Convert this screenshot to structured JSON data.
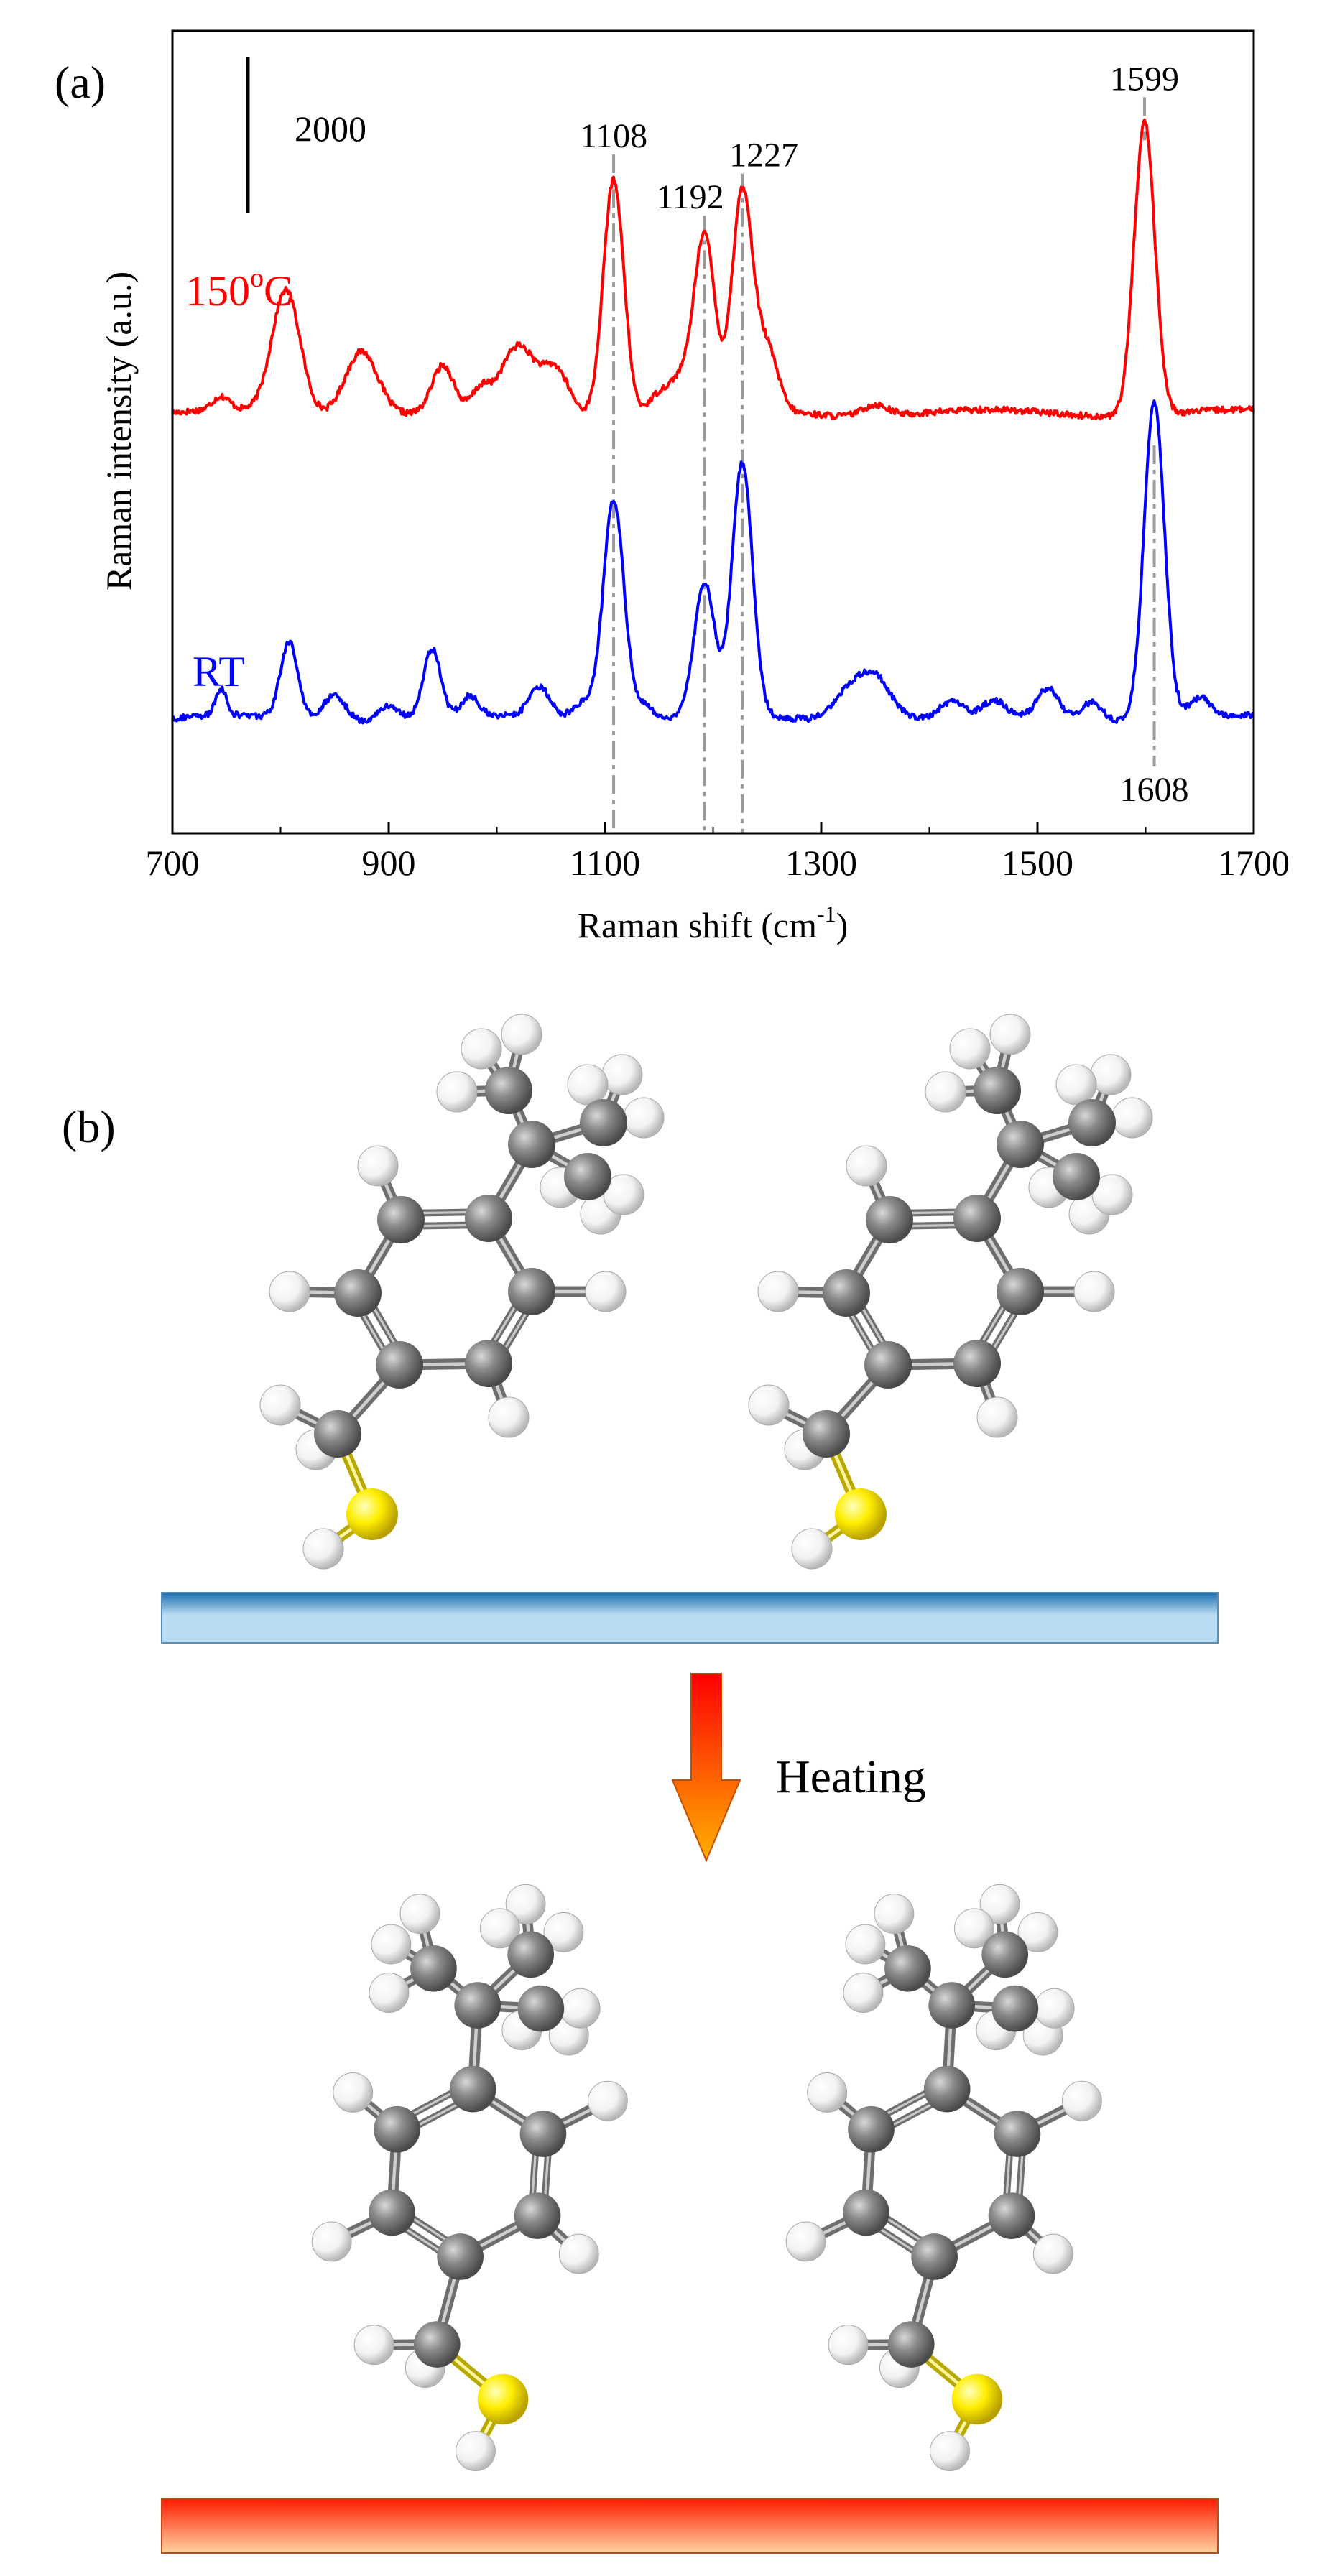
{
  "figure": {
    "panel_a_label": "(a)",
    "panel_b_label": "(b)"
  },
  "chart_data": {
    "type": "line",
    "xlabel": "Raman shift (cm-1)",
    "xlabel_parts": {
      "main": "Raman shift (cm",
      "sup": "-1",
      "tail": ")"
    },
    "ylabel": "Raman intensity (a.u.)",
    "xlim": [
      700,
      1700
    ],
    "x_ticks": [
      700,
      900,
      1100,
      1300,
      1500,
      1700
    ],
    "scale_bar": {
      "label": "2000",
      "value": 2000
    },
    "grid": false,
    "legend": "none",
    "series": [
      {
        "name": "150oC",
        "label_parts": {
          "main": "150",
          "sup": "o",
          "tail": "C"
        },
        "color": "#ff0000",
        "offset": 11000,
        "peaks": [
          [
            1108,
            6200
          ],
          [
            1192,
            4600
          ],
          [
            1227,
            5700
          ],
          [
            1599,
            7700
          ]
        ],
        "features": [
          [
            745,
            350,
            8
          ],
          [
            805,
            3200,
            13
          ],
          [
            875,
            1700,
            15
          ],
          [
            950,
            1200,
            10
          ],
          [
            985,
            500,
            8
          ],
          [
            1020,
            1700,
            16
          ],
          [
            1055,
            1100,
            12
          ],
          [
            1150,
            500,
            10
          ],
          [
            1170,
            800,
            10
          ],
          [
            1250,
            1600,
            10
          ],
          [
            1350,
            300,
            12
          ]
        ],
        "x": [
          700,
          750,
          800,
          850,
          900,
          950,
          1000,
          1050,
          1100,
          1108,
          1150,
          1192,
          1227,
          1250,
          1300,
          1350,
          1400,
          1450,
          1500,
          1550,
          1599,
          1650,
          1700
        ],
        "y": [
          11300,
          11400,
          13800,
          12200,
          11500,
          12100,
          12000,
          12300,
          14500,
          17200,
          11800,
          15600,
          16700,
          12500,
          11200,
          11400,
          11150,
          11100,
          10900,
          11100,
          18700,
          11100,
          11000
        ]
      },
      {
        "name": "RT",
        "label_parts": {
          "main": "RT",
          "sup": "",
          "tail": ""
        },
        "color": "#0000ff",
        "offset": 3000,
        "peaks": [
          [
            1108,
            5800
          ],
          [
            1192,
            3500
          ],
          [
            1227,
            6600
          ],
          [
            1608,
            8300
          ]
        ],
        "features": [
          [
            745,
            700,
            5
          ],
          [
            808,
            2000,
            8
          ],
          [
            850,
            700,
            10
          ],
          [
            900,
            400,
            10
          ],
          [
            940,
            1800,
            8
          ],
          [
            975,
            500,
            8
          ],
          [
            1040,
            800,
            10
          ],
          [
            1080,
            500,
            10
          ],
          [
            1135,
            400,
            10
          ],
          [
            1325,
            700,
            15
          ],
          [
            1350,
            1100,
            15
          ],
          [
            1420,
            400,
            10
          ],
          [
            1460,
            400,
            10
          ],
          [
            1510,
            800,
            10
          ],
          [
            1550,
            500,
            10
          ],
          [
            1650,
            500,
            10
          ]
        ],
        "x": [
          700,
          750,
          800,
          850,
          900,
          950,
          1000,
          1050,
          1100,
          1108,
          1150,
          1192,
          1227,
          1250,
          1300,
          1350,
          1400,
          1450,
          1500,
          1550,
          1608,
          1650,
          1700
        ],
        "y": [
          3400,
          3700,
          4700,
          3900,
          3500,
          4300,
          3800,
          3700,
          7800,
          8800,
          3600,
          6500,
          9600,
          4100,
          3800,
          4100,
          3300,
          3500,
          3700,
          3600,
          11300,
          3500,
          3000
        ]
      }
    ],
    "peak_labels": [
      {
        "text": "1108",
        "x": 1108,
        "y": 17200,
        "dashed_series": "both"
      },
      {
        "text": "1192",
        "x": 1192,
        "y": 15600,
        "dashed_series": "both"
      },
      {
        "text": "1227",
        "x": 1227,
        "y": 16700,
        "dashed_series": "both"
      },
      {
        "text": "1599",
        "x": 1599,
        "y": 18700,
        "dashed_series": "150oC"
      },
      {
        "text": "1608",
        "x": 1608,
        "y": 3000,
        "dashed_series": "RT",
        "below": true
      }
    ],
    "ylim": [
      0,
      21000
    ]
  },
  "diagram": {
    "arrow_label": "Heating",
    "substrate_top_colors": [
      "#1a6fb0",
      "#b9dcf2"
    ],
    "substrate_bottom_colors": [
      "#ff1a00",
      "#ffd2a0"
    ],
    "atom_colors": {
      "carbon": "#7a7a7a",
      "hydrogen": "#ffffff",
      "sulfur": "#ffee00"
    },
    "arrow_colors": [
      "#ff0000",
      "#ffb000"
    ]
  }
}
